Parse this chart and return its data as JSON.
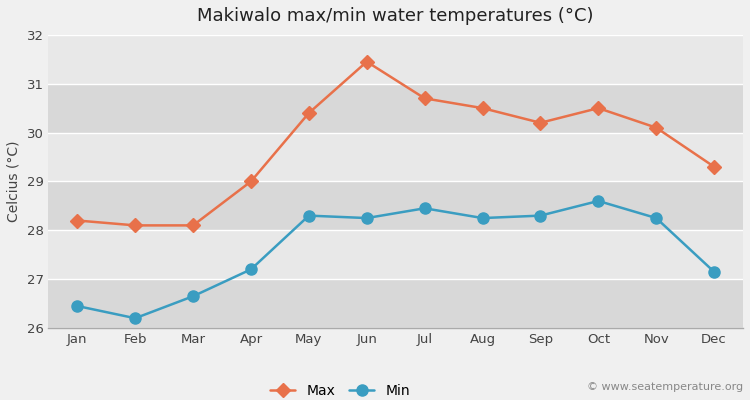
{
  "title": "Makiwalo max/min water temperatures (°C)",
  "ylabel": "Celcius (°C)",
  "months": [
    "Jan",
    "Feb",
    "Mar",
    "Apr",
    "May",
    "Jun",
    "Jul",
    "Aug",
    "Sep",
    "Oct",
    "Nov",
    "Dec"
  ],
  "max_temps": [
    28.2,
    28.1,
    28.1,
    29.0,
    30.4,
    31.45,
    30.7,
    30.5,
    30.2,
    30.5,
    30.1,
    29.3
  ],
  "min_temps": [
    26.45,
    26.2,
    26.65,
    27.2,
    28.3,
    28.25,
    28.45,
    28.25,
    28.3,
    28.6,
    28.25,
    27.15
  ],
  "max_color": "#e8714a",
  "min_color": "#3a9dc1",
  "fig_bg_color": "#f0f0f0",
  "band_light": "#e8e8e8",
  "band_dark": "#d8d8d8",
  "ylim": [
    26,
    32
  ],
  "yticks": [
    26,
    27,
    28,
    29,
    30,
    31,
    32
  ],
  "title_fontsize": 13,
  "label_fontsize": 10,
  "tick_fontsize": 9.5,
  "legend_fontsize": 10,
  "watermark": "© www.seatemperature.org",
  "linewidth": 1.8,
  "markersize_max": 7,
  "markersize_min": 8
}
